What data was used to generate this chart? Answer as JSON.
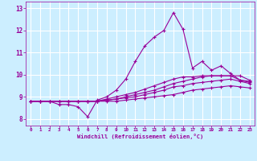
{
  "xlabel": "Windchill (Refroidissement éolien,°C)",
  "bg_color": "#cceeff",
  "line_color": "#990099",
  "grid_color": "#ffffff",
  "xmin": -0.5,
  "xmax": 23.5,
  "ymin": 7.7,
  "ymax": 13.3,
  "yticks": [
    8,
    9,
    10,
    11,
    12,
    13
  ],
  "xticks": [
    0,
    1,
    2,
    3,
    4,
    5,
    6,
    7,
    8,
    9,
    10,
    11,
    12,
    13,
    14,
    15,
    16,
    17,
    18,
    19,
    20,
    21,
    22,
    23
  ],
  "lines": [
    [
      8.8,
      8.8,
      8.8,
      8.65,
      8.65,
      8.55,
      8.1,
      8.85,
      9.0,
      9.3,
      9.8,
      10.6,
      11.3,
      11.7,
      12.0,
      12.8,
      12.05,
      10.3,
      10.6,
      10.2,
      10.4,
      10.05,
      9.75,
      9.7
    ],
    [
      8.8,
      8.8,
      8.8,
      8.8,
      8.8,
      8.8,
      8.8,
      8.8,
      8.9,
      9.0,
      9.1,
      9.2,
      9.35,
      9.5,
      9.65,
      9.8,
      9.9,
      9.9,
      9.95,
      9.95,
      9.95,
      9.95,
      9.95,
      9.75
    ],
    [
      8.8,
      8.8,
      8.8,
      8.8,
      8.8,
      8.8,
      8.8,
      8.8,
      8.85,
      8.9,
      9.0,
      9.1,
      9.2,
      9.3,
      9.45,
      9.6,
      9.7,
      9.8,
      9.9,
      9.95,
      9.95,
      9.95,
      9.75,
      9.65
    ],
    [
      8.8,
      8.8,
      8.8,
      8.8,
      8.8,
      8.8,
      8.8,
      8.8,
      8.85,
      8.9,
      8.95,
      9.0,
      9.1,
      9.2,
      9.3,
      9.45,
      9.5,
      9.6,
      9.65,
      9.7,
      9.75,
      9.8,
      9.7,
      9.6
    ],
    [
      8.8,
      8.8,
      8.8,
      8.8,
      8.8,
      8.8,
      8.8,
      8.8,
      8.8,
      8.8,
      8.85,
      8.9,
      8.95,
      9.0,
      9.05,
      9.1,
      9.2,
      9.3,
      9.35,
      9.4,
      9.45,
      9.5,
      9.45,
      9.4
    ]
  ]
}
